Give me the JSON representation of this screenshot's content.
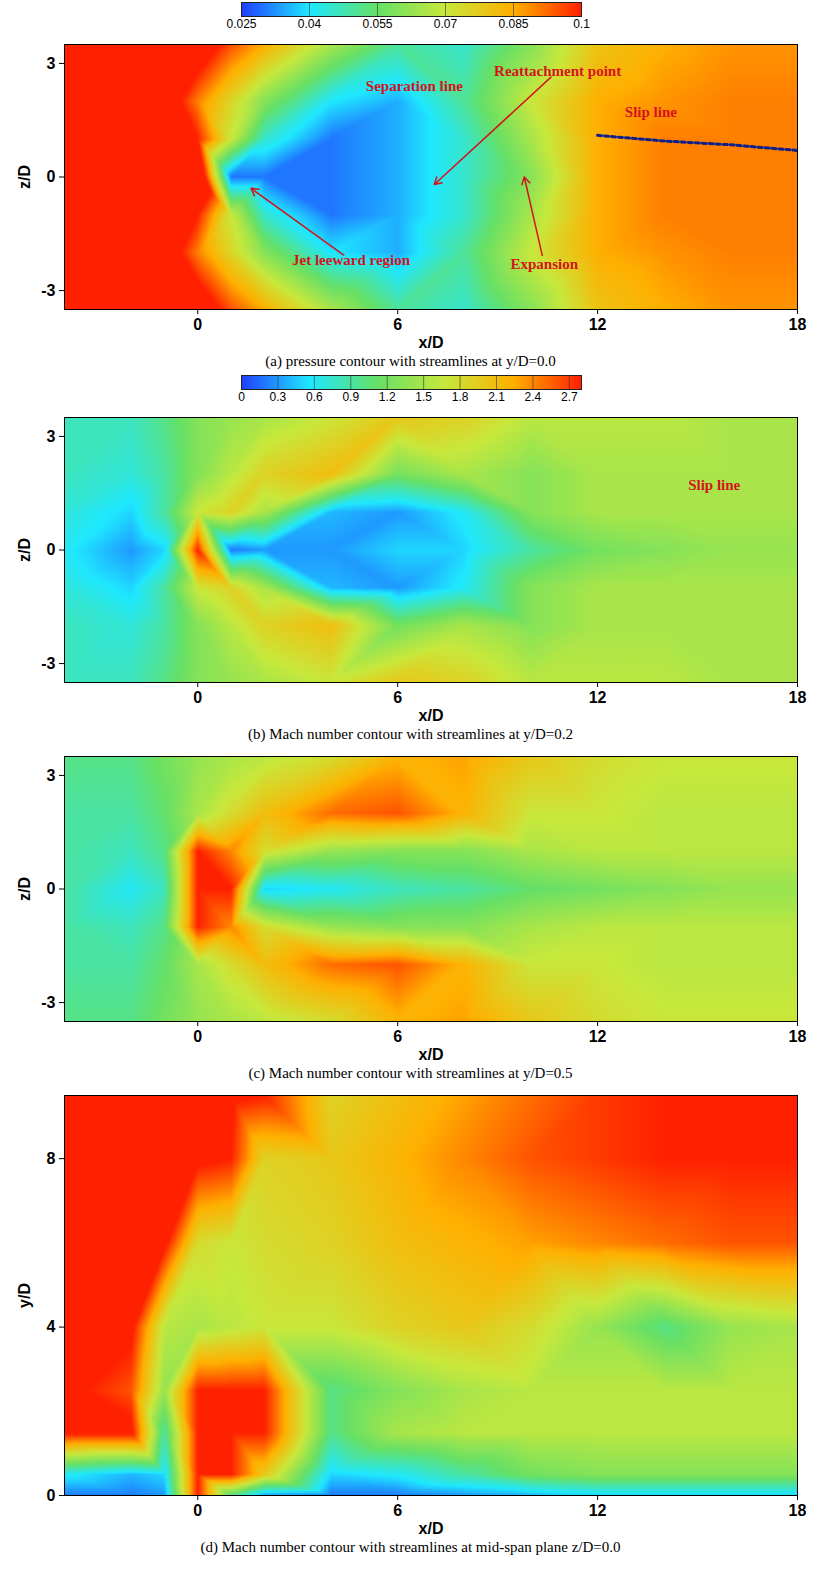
{
  "chart_data": [
    {
      "type": "heatmap",
      "title": "(a) pressure contour with streamlines at y/D=0.0",
      "xlabel": "x/D",
      "ylabel": "z/D",
      "xlim": [
        -4,
        18
      ],
      "ylim": [
        -3.5,
        3.5
      ],
      "xticks": [
        0,
        6,
        12,
        18
      ],
      "yticks": [
        -3,
        0,
        3
      ],
      "colorbar": {
        "range": [
          0.025,
          0.1
        ],
        "ticks": [
          0.025,
          0.04,
          0.055,
          0.07,
          0.085,
          0.1
        ]
      },
      "cells": {
        "x": [
          -4,
          -2,
          -1,
          0,
          1,
          2,
          4,
          6,
          8,
          10,
          12,
          14,
          16,
          18
        ],
        "y": [
          -3.5,
          -2,
          -1,
          0,
          1,
          2,
          3.5
        ],
        "values": [
          [
            0.12,
            0.12,
            0.12,
            0.11,
            0.095,
            0.085,
            0.065,
            0.05,
            0.045,
            0.06,
            0.08,
            0.085,
            0.088,
            0.088
          ],
          [
            0.12,
            0.12,
            0.11,
            0.09,
            0.075,
            0.06,
            0.04,
            0.035,
            0.05,
            0.07,
            0.085,
            0.088,
            0.09,
            0.09
          ],
          [
            0.12,
            0.12,
            0.12,
            0.1,
            0.07,
            0.045,
            0.03,
            0.035,
            0.045,
            0.065,
            0.085,
            0.09,
            0.09,
            0.09
          ],
          [
            0.12,
            0.12,
            0.12,
            0.12,
            0.03,
            0.03,
            0.03,
            0.035,
            0.045,
            0.06,
            0.085,
            0.09,
            0.09,
            0.09
          ],
          [
            0.12,
            0.12,
            0.12,
            0.1,
            0.07,
            0.045,
            0.03,
            0.035,
            0.045,
            0.065,
            0.085,
            0.09,
            0.09,
            0.09
          ],
          [
            0.12,
            0.12,
            0.11,
            0.09,
            0.075,
            0.06,
            0.04,
            0.035,
            0.05,
            0.07,
            0.085,
            0.088,
            0.09,
            0.09
          ],
          [
            0.12,
            0.12,
            0.12,
            0.11,
            0.095,
            0.085,
            0.065,
            0.05,
            0.045,
            0.06,
            0.08,
            0.085,
            0.088,
            0.088
          ]
        ]
      },
      "annotations": [
        {
          "text": "Separation line",
          "x": 6.5,
          "y": 2.4
        },
        {
          "text": "Reattachment point",
          "x": 10.8,
          "y": 2.8,
          "target": [
            7.1,
            -0.2
          ]
        },
        {
          "text": "Slip line",
          "x": 13.6,
          "y": 1.7,
          "line": {
            "x": [
              12,
              14,
              16,
              18
            ],
            "y": [
              1.1,
              0.95,
              0.85,
              0.7
            ]
          }
        },
        {
          "text": "Jet leeward region",
          "x": 4.6,
          "y": -2.2,
          "target": [
            1.6,
            -0.3
          ]
        },
        {
          "text": "Expansion",
          "x": 10.4,
          "y": -2.3,
          "target": [
            9.8,
            0.0
          ]
        }
      ]
    },
    {
      "type": "heatmap",
      "title": "(b) Mach number contour with streamlines at y/D=0.2",
      "xlabel": "x/D",
      "ylabel": "z/D",
      "xlim": [
        -4,
        18
      ],
      "ylim": [
        -3.5,
        3.5
      ],
      "xticks": [
        0,
        6,
        12,
        18
      ],
      "yticks": [
        -3,
        0,
        3
      ],
      "colorbar": {
        "range": [
          0,
          2.8
        ],
        "ticks": [
          0,
          0.3,
          0.6,
          0.9,
          1.2,
          1.5,
          1.8,
          2.1,
          2.4,
          2.7
        ]
      },
      "cells": {
        "x": [
          -4,
          -2,
          -1,
          0,
          1,
          2,
          4,
          6,
          8,
          10,
          12,
          14,
          16,
          18
        ],
        "y": [
          -3.5,
          -2,
          -1,
          0,
          1,
          2,
          3.5
        ],
        "values": [
          [
            0.8,
            0.8,
            1.0,
            1.3,
            1.4,
            1.5,
            1.7,
            2.0,
            1.9,
            1.6,
            1.6,
            1.6,
            1.5,
            1.5
          ],
          [
            0.8,
            0.7,
            0.9,
            1.3,
            1.6,
            1.9,
            2.1,
            1.2,
            1.5,
            1.3,
            1.5,
            1.5,
            1.5,
            1.5
          ],
          [
            0.7,
            0.5,
            0.9,
            1.7,
            1.9,
            1.5,
            0.4,
            0.3,
            0.6,
            1.3,
            1.5,
            1.5,
            1.5,
            1.5
          ],
          [
            0.6,
            0.3,
            0.5,
            2.8,
            0.2,
            0.3,
            0.3,
            0.5,
            0.5,
            0.9,
            1.2,
            1.3,
            1.4,
            1.4
          ],
          [
            0.7,
            0.5,
            0.9,
            1.7,
            1.9,
            1.5,
            0.4,
            0.3,
            0.6,
            1.3,
            1.5,
            1.5,
            1.5,
            1.5
          ],
          [
            0.8,
            0.7,
            0.9,
            1.3,
            1.6,
            1.9,
            2.1,
            1.2,
            1.5,
            1.3,
            1.5,
            1.5,
            1.5,
            1.5
          ],
          [
            0.8,
            0.8,
            1.0,
            1.3,
            1.4,
            1.5,
            1.7,
            2.0,
            1.9,
            1.6,
            1.6,
            1.6,
            1.5,
            1.5
          ]
        ]
      },
      "annotations": [
        {
          "text": "Slip line",
          "x": 15.5,
          "y": 1.7
        }
      ]
    },
    {
      "type": "heatmap",
      "title": "(c) Mach number contour with streamlines at y/D=0.5",
      "xlabel": "x/D",
      "ylabel": "z/D",
      "xlim": [
        -4,
        18
      ],
      "ylim": [
        -3.5,
        3.5
      ],
      "xticks": [
        0,
        6,
        12,
        18
      ],
      "yticks": [
        -3,
        0,
        3
      ],
      "color_range": [
        0,
        2.8
      ],
      "cells": {
        "x": [
          -4,
          -2,
          -1,
          0,
          1,
          2,
          4,
          6,
          8,
          10,
          12,
          14,
          16,
          18
        ],
        "y": [
          -3.5,
          -2,
          -1,
          0,
          1,
          2,
          3.5
        ],
        "values": [
          [
            1.0,
            1.0,
            1.2,
            1.4,
            1.5,
            1.6,
            1.8,
            2.2,
            2.3,
            2.0,
            1.8,
            1.7,
            1.7,
            1.7
          ],
          [
            0.9,
            0.9,
            1.1,
            1.5,
            1.8,
            2.1,
            2.5,
            2.6,
            2.2,
            1.7,
            1.7,
            1.6,
            1.6,
            1.6
          ],
          [
            0.9,
            0.8,
            1.0,
            2.8,
            2.4,
            1.8,
            1.4,
            1.3,
            1.3,
            1.5,
            1.6,
            1.6,
            1.6,
            1.6
          ],
          [
            0.9,
            0.6,
            0.8,
            2.8,
            2.8,
            0.5,
            0.6,
            0.8,
            0.9,
            1.1,
            1.2,
            1.3,
            1.4,
            1.4
          ],
          [
            0.9,
            0.8,
            1.0,
            2.8,
            2.4,
            1.8,
            1.4,
            1.3,
            1.3,
            1.5,
            1.6,
            1.6,
            1.6,
            1.6
          ],
          [
            0.9,
            0.9,
            1.1,
            1.5,
            1.8,
            2.1,
            2.5,
            2.6,
            2.2,
            1.7,
            1.7,
            1.6,
            1.6,
            1.6
          ],
          [
            1.0,
            1.0,
            1.2,
            1.4,
            1.5,
            1.6,
            1.8,
            2.2,
            2.3,
            2.0,
            1.8,
            1.7,
            1.7,
            1.7
          ]
        ]
      },
      "annotations": []
    },
    {
      "type": "heatmap",
      "title": "(d) Mach number contour with streamlines at mid-span plane z/D=0.0",
      "xlabel": "x/D",
      "ylabel": "y/D",
      "xlim": [
        -4,
        18
      ],
      "ylim": [
        0,
        9.5
      ],
      "xticks": [
        0,
        6,
        12,
        18
      ],
      "yticks": [
        0,
        4,
        8
      ],
      "color_range": [
        0,
        2.8
      ],
      "cells": {
        "x": [
          -4,
          -2,
          -1,
          0,
          1,
          2,
          4,
          6,
          8,
          10,
          12,
          14,
          16,
          18
        ],
        "y": [
          0,
          0.5,
          1.5,
          2.5,
          4,
          6,
          8,
          9.5
        ],
        "values": [
          [
            0.2,
            0.2,
            0.3,
            2.8,
            1.0,
            0.3,
            0.2,
            0.2,
            0.3,
            0.4,
            0.5,
            0.5,
            0.5,
            0.5
          ],
          [
            0.6,
            0.4,
            0.5,
            2.8,
            2.8,
            2.0,
            0.5,
            0.6,
            0.9,
            1.2,
            1.3,
            1.3,
            1.3,
            1.3
          ],
          [
            2.9,
            2.9,
            0.9,
            2.8,
            2.8,
            2.8,
            1.0,
            1.5,
            1.6,
            1.6,
            1.6,
            1.6,
            1.6,
            1.6
          ],
          [
            2.9,
            2.6,
            1.4,
            2.8,
            2.8,
            2.8,
            1.0,
            1.3,
            1.5,
            1.6,
            1.6,
            1.6,
            1.6,
            1.6
          ],
          [
            2.9,
            2.9,
            1.6,
            1.5,
            1.6,
            1.7,
            1.7,
            1.9,
            2.0,
            1.8,
            1.4,
            1.0,
            1.4,
            1.5
          ],
          [
            2.9,
            2.9,
            2.9,
            1.8,
            1.7,
            1.8,
            1.9,
            2.1,
            2.2,
            2.3,
            2.4,
            2.5,
            2.6,
            2.6
          ],
          [
            2.9,
            2.9,
            2.9,
            2.9,
            2.8,
            1.9,
            2.0,
            2.2,
            2.4,
            2.6,
            2.7,
            2.8,
            2.8,
            2.8
          ],
          [
            2.9,
            2.9,
            2.9,
            2.9,
            2.9,
            2.8,
            1.9,
            2.1,
            2.3,
            2.5,
            2.7,
            2.8,
            2.8,
            2.8
          ]
        ]
      },
      "annotations": []
    }
  ]
}
